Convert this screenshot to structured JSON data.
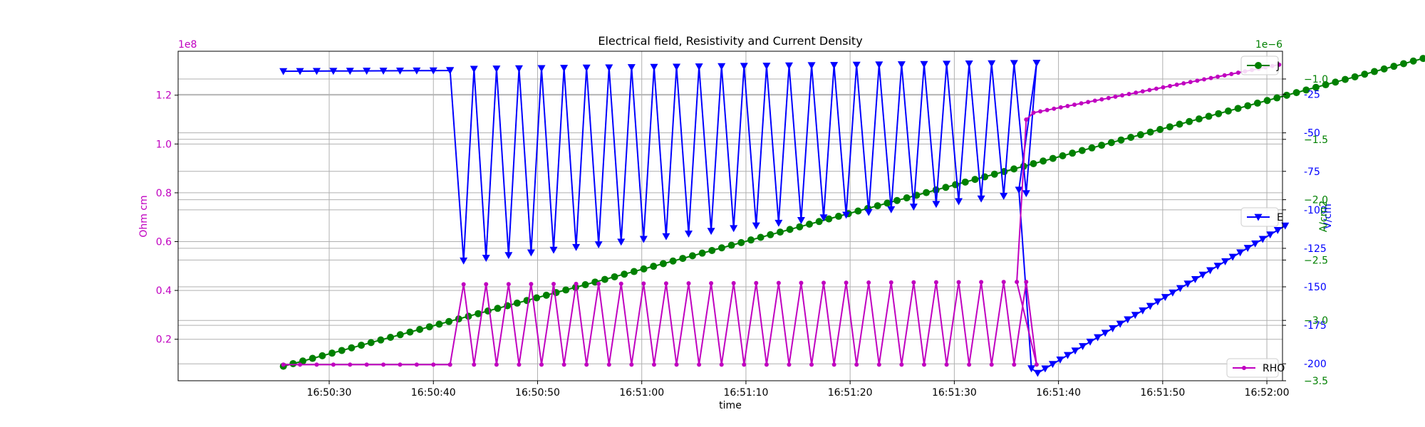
{
  "chart_data": {
    "type": "line",
    "title": "Electrical field, Resistivity and Current Density",
    "xlabel": "time",
    "x_ticks": [
      "16:50:30",
      "16:50:40",
      "16:50:50",
      "16:51:00",
      "16:51:10",
      "16:51:20",
      "16:51:30",
      "16:51:40",
      "16:51:50",
      "16:52:00"
    ],
    "x_range_seconds_from_1650": [
      15.5,
      121.5
    ],
    "grid": true,
    "axes": {
      "left": {
        "label": "Ohm cm",
        "offset_text": "1e8",
        "color": "#c000c0",
        "range": [
          0.03,
          1.38
        ],
        "ticks": [
          "0.2",
          "0.4",
          "0.6",
          "0.8",
          "1.0",
          "1.2"
        ],
        "tick_values": [
          0.2,
          0.4,
          0.6,
          0.8,
          1.0,
          1.2
        ]
      },
      "right_e": {
        "label": "V/cm",
        "color": "#0000ff",
        "range": [
          -211,
          3
        ],
        "ticks": [
          "-25",
          "-50",
          "-75",
          "-100",
          "-125",
          "-150",
          "-175",
          "-200"
        ],
        "tick_values": [
          -25,
          -50,
          -75,
          -100,
          -125,
          -150,
          -175,
          -200
        ]
      },
      "right_j": {
        "label": "A/cm2",
        "offset_text": "1e−6",
        "color": "#008000",
        "range": [
          -3.5,
          -0.77
        ],
        "ticks": [
          "−1.0",
          "−1.5",
          "−2.0",
          "−2.5",
          "−3.0",
          "−3.5"
        ],
        "tick_values": [
          -1.0,
          -1.5,
          -2.0,
          -2.5,
          -3.0,
          -3.5
        ]
      }
    },
    "series": [
      {
        "name": "J",
        "axis": "right_j",
        "color": "#008000",
        "marker": "circle",
        "x_start": 25.6,
        "x_step": 0.935,
        "x_count": 119,
        "y_start": -3.38,
        "y_step": 0.0218
      },
      {
        "name": "E",
        "axis": "right_e",
        "color": "#0000ff",
        "marker": "triangle",
        "pattern": "e-sawtooth"
      },
      {
        "name": "RHO",
        "axis": "left",
        "color": "#c000c0",
        "marker": "dot",
        "pattern": "rho-sawtooth"
      }
    ],
    "legend": [
      {
        "name": "J",
        "placement": "top-right"
      },
      {
        "name": "E",
        "placement": "center-right"
      },
      {
        "name": "RHO",
        "placement": "bottom-right"
      }
    ]
  }
}
